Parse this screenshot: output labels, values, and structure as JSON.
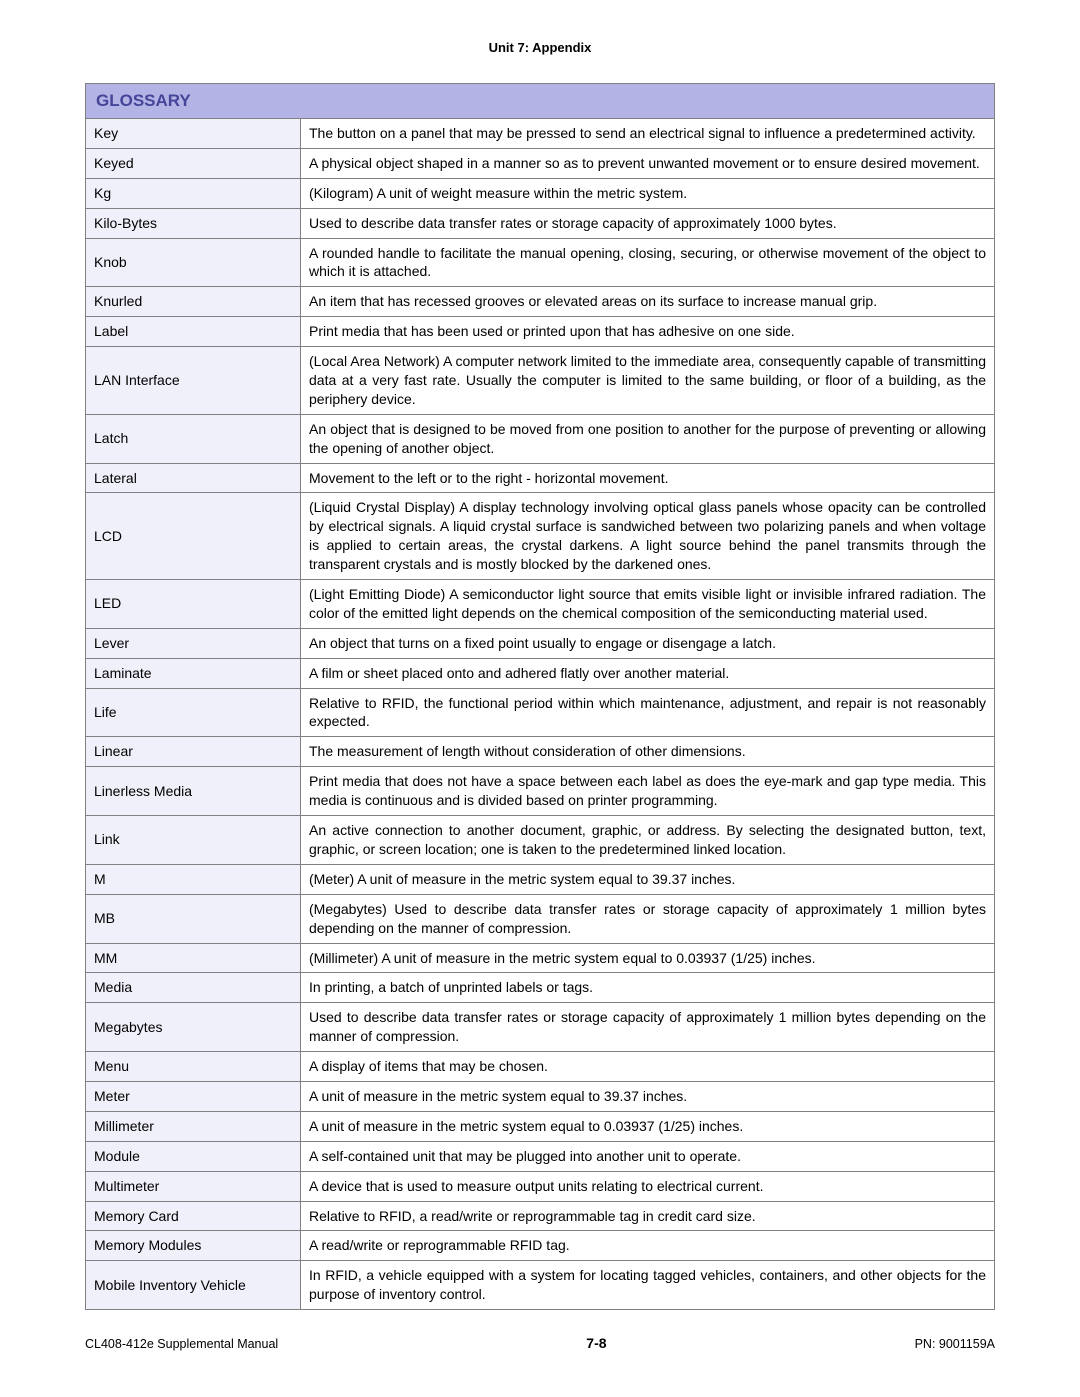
{
  "header": {
    "unit_title": "Unit 7:  Appendix"
  },
  "glossary": {
    "title": "GLOSSARY",
    "rows": [
      {
        "term": "Key",
        "def": "The button on a panel that may be pressed to send an electrical signal to influence a predetermined activity."
      },
      {
        "term": "Keyed",
        "def": "A physical object shaped in a manner so as to prevent unwanted movement or to ensure desired movement."
      },
      {
        "term": "Kg",
        "def": "(Kilogram) A unit of weight measure within the metric system."
      },
      {
        "term": "Kilo-Bytes",
        "def": "Used to describe data transfer rates or storage capacity of approximately 1000 bytes."
      },
      {
        "term": "Knob",
        "def": "A rounded handle to facilitate the manual opening, closing, securing, or otherwise movement of the object to which it is attached."
      },
      {
        "term": "Knurled",
        "def": "An item that has recessed grooves or elevated areas on its surface to increase manual grip."
      },
      {
        "term": "Label",
        "def": "Print media that has been used or printed upon that has adhesive on one side."
      },
      {
        "term": "LAN Interface",
        "def": "(Local Area Network) A computer network limited to the immediate area, consequently capable of transmitting data at a very fast rate. Usually the computer is limited to the same building, or floor of a building, as the periphery device."
      },
      {
        "term": "Latch",
        "def": "An object that is designed to be moved from one position to another for the purpose of preventing or allowing the opening of another object."
      },
      {
        "term": "Lateral",
        "def": "Movement to the left or to the right - horizontal movement."
      },
      {
        "term": "LCD",
        "def": "(Liquid Crystal Display) A display technology involving optical glass panels whose opacity can be controlled by electrical signals. A liquid crystal surface is sandwiched between two polarizing panels and when voltage is applied to certain areas, the crystal darkens. A light source behind the panel transmits through the transparent crystals and is mostly blocked by the darkened ones."
      },
      {
        "term": "LED",
        "def": "(Light Emitting Diode) A semiconductor light source that emits visible light or invisible infrared radiation. The color of the emitted light depends on the chemical composition of the semiconducting material used."
      },
      {
        "term": "Lever",
        "def": "An object that turns on a fixed point usually to engage or disengage a latch."
      },
      {
        "term": "Laminate",
        "def": "A film or sheet placed onto and adhered flatly over another material."
      },
      {
        "term": "Life",
        "def": "Relative to RFID, the functional period within which maintenance, adjustment, and repair is not reasonably expected."
      },
      {
        "term": "Linear",
        "def": "The measurement of length without consideration of other dimensions."
      },
      {
        "term": "Linerless Media",
        "def": "Print media that does not have a space between each label as does the eye-mark and gap type media. This media is continuous and is divided based on printer programming."
      },
      {
        "term": "Link",
        "def": "An active connection to another document, graphic, or address. By selecting the designated button, text, graphic, or screen location; one is taken to the predetermined linked location."
      },
      {
        "term": "M",
        "def": "(Meter) A unit of measure in the metric system equal to 39.37 inches."
      },
      {
        "term": "MB",
        "def": "(Megabytes) Used to describe data transfer rates or storage capacity of approximately 1 million bytes depending on the manner of compression."
      },
      {
        "term": "MM",
        "def": "(Millimeter) A unit of measure in the metric system equal to 0.03937 (1/25) inches."
      },
      {
        "term": "Media",
        "def": "In printing, a batch of unprinted labels or tags."
      },
      {
        "term": "Megabytes",
        "def": "Used to describe data transfer rates or storage capacity of approximately 1 million bytes depending on the manner of compression."
      },
      {
        "term": "Menu",
        "def": "A display of items that may be chosen."
      },
      {
        "term": "Meter",
        "def": "A unit of measure in the metric system equal to 39.37 inches."
      },
      {
        "term": "Millimeter",
        "def": "A unit of measure in the metric system equal to 0.03937 (1/25) inches."
      },
      {
        "term": "Module",
        "def": "A self-contained unit that may be plugged into another unit to operate."
      },
      {
        "term": "Multimeter",
        "def": "A device that is used to measure output units relating to electrical current."
      },
      {
        "term": "Memory Card",
        "def": "Relative to RFID, a read/write or reprogrammable tag in credit card size."
      },
      {
        "term": "Memory Modules",
        "def": "A read/write or reprogrammable RFID tag."
      },
      {
        "term": "Mobile Inventory Vehicle",
        "def": "In RFID, a vehicle equipped with a system for locating tagged vehicles, containers, and other objects for the purpose of inventory control."
      }
    ]
  },
  "footer": {
    "left": "CL408-412e Supplemental Manual",
    "page": "7-8",
    "right": "PN: 9001159A"
  }
}
